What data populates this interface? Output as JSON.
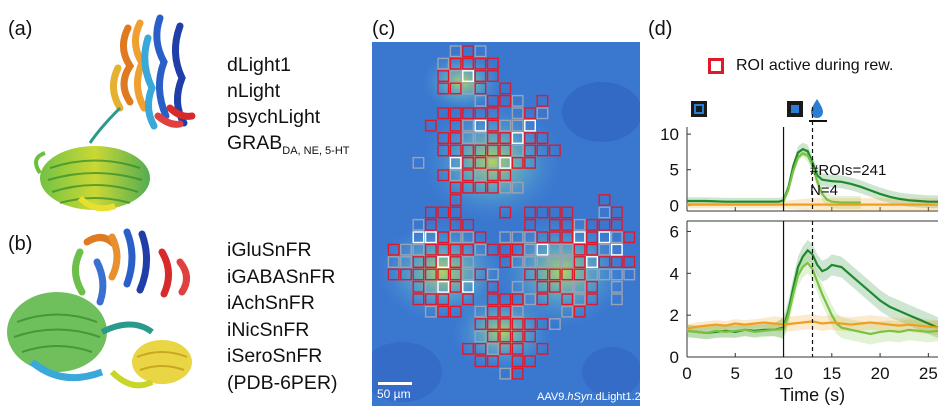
{
  "panels": {
    "a": {
      "letter": "(a)",
      "sensors": [
        "dLight1",
        "nLight",
        "psychLight"
      ],
      "grab": {
        "base": "GRAB",
        "subscript": "DA, NE, 5-HT"
      }
    },
    "b": {
      "letter": "(b)",
      "sensors": [
        "iGluSnFR",
        "iGABASnFR",
        "iAchSnFR",
        "iNicSnFR",
        "iSeroSnFR",
        "(PDB-6PER)"
      ]
    },
    "c": {
      "letter": "(c)",
      "scale_bar_label": "50 µm",
      "construct_prefix": "AAV9.",
      "construct_italic": "hSyn",
      "construct_suffix": ".dLight1.2"
    },
    "d": {
      "letter": "(d)",
      "legend_label": "ROI active during rew.",
      "annotation_rois": "#ROIs=241",
      "annotation_n": "N=4"
    }
  },
  "colors": {
    "roi_active": "#e0192a",
    "roi_other": "#9aa3b5",
    "dark_green": "#1e8a2e",
    "light_green": "#7ac242",
    "orange": "#f0a020",
    "drop_blue": "#2a7fd4"
  },
  "chart_data": [
    {
      "type": "line",
      "xlabel": "Time (s)",
      "xlim": [
        0,
        26
      ],
      "ylim": [
        -0.8,
        11
      ],
      "yticks": [
        0,
        5,
        10
      ],
      "xticks": [
        0,
        5,
        10,
        15,
        20,
        25
      ],
      "xtick_labels_shown": false,
      "markers": {
        "cue": 10,
        "reward": 13
      },
      "series": [
        {
          "color": "#1e8a2e",
          "x": [
            0,
            2,
            4,
            6,
            8,
            9.5,
            10,
            10.5,
            11,
            11.5,
            12,
            12.5,
            13,
            13.5,
            14,
            15,
            16,
            17,
            18,
            19,
            20,
            21,
            22,
            23,
            24,
            25,
            26
          ],
          "y": [
            0.6,
            0.6,
            0.5,
            0.5,
            0.5,
            0.5,
            0.7,
            2.5,
            5.5,
            7.4,
            7.9,
            7.6,
            6.0,
            4.2,
            3.6,
            3.4,
            3.3,
            3.0,
            2.6,
            2.1,
            1.6,
            1.2,
            0.9,
            0.7,
            0.6,
            0.5,
            0.5
          ]
        },
        {
          "color": "#7ac242",
          "x": [
            10,
            10.5,
            11,
            11.5,
            12,
            12.5,
            13,
            13.5,
            14,
            14.5,
            15,
            16,
            17,
            18
          ],
          "y": [
            0.6,
            2.2,
            4.8,
            6.7,
            7.3,
            7.0,
            5.6,
            3.3,
            1.6,
            0.8,
            0.5,
            0.4,
            0.4,
            0.4
          ]
        },
        {
          "color": "#f0a020",
          "x": [
            0,
            5,
            10,
            13,
            15,
            20,
            26
          ],
          "y": [
            0.1,
            0.1,
            0.1,
            0.1,
            0.1,
            0.1,
            0.1
          ]
        }
      ]
    },
    {
      "type": "line",
      "xlabel": "Time (s)",
      "xlim": [
        0,
        26
      ],
      "ylim": [
        0,
        6.5
      ],
      "yticks": [
        0,
        2,
        4,
        6
      ],
      "xticks": [
        0,
        5,
        10,
        15,
        20,
        25
      ],
      "markers": {
        "cue": 10,
        "reward": 13
      },
      "series": [
        {
          "color": "#1e8a2e",
          "x": [
            0,
            1,
            2,
            3,
            4,
            5,
            6,
            7,
            8,
            9,
            10,
            10.5,
            11,
            11.5,
            12,
            12.5,
            13,
            13.5,
            14,
            14.5,
            15,
            16,
            17,
            18,
            19,
            20,
            21,
            22,
            23,
            24,
            25,
            26
          ],
          "y": [
            1.25,
            1.2,
            1.15,
            1.2,
            1.25,
            1.2,
            1.3,
            1.25,
            1.3,
            1.3,
            1.4,
            2.2,
            3.3,
            4.3,
            4.8,
            5.1,
            4.9,
            4.4,
            4.1,
            4.2,
            4.4,
            4.3,
            3.9,
            3.5,
            3.1,
            2.7,
            2.4,
            2.2,
            2.0,
            1.8,
            1.6,
            1.4
          ]
        },
        {
          "color": "#7ac242",
          "x": [
            0,
            1,
            2,
            3,
            4,
            5,
            6,
            7,
            8,
            9,
            10,
            10.5,
            11,
            11.5,
            12,
            12.5,
            13,
            13.5,
            14,
            14.5,
            15,
            15.5,
            16,
            17,
            18,
            19,
            20,
            21,
            22,
            23,
            24,
            25,
            26
          ],
          "y": [
            1.25,
            1.2,
            1.15,
            1.25,
            1.2,
            1.25,
            1.3,
            1.2,
            1.25,
            1.3,
            1.35,
            2.0,
            3.0,
            3.9,
            4.3,
            4.5,
            4.2,
            3.6,
            3.0,
            2.5,
            2.0,
            1.6,
            1.4,
            1.3,
            1.2,
            1.1,
            1.2,
            1.25,
            1.2,
            1.3,
            1.25,
            1.2,
            1.25
          ]
        },
        {
          "color": "#f0a020",
          "x": [
            0,
            1,
            2,
            3,
            4,
            5,
            6,
            7,
            8,
            9,
            10,
            11,
            12,
            13,
            14,
            15,
            16,
            17,
            18,
            19,
            20,
            21,
            22,
            23,
            24,
            25,
            26
          ],
          "y": [
            1.35,
            1.45,
            1.5,
            1.55,
            1.5,
            1.6,
            1.55,
            1.6,
            1.65,
            1.6,
            1.55,
            1.6,
            1.65,
            1.7,
            1.6,
            1.65,
            1.6,
            1.55,
            1.6,
            1.65,
            1.6,
            1.55,
            1.5,
            1.55,
            1.5,
            1.45,
            1.4
          ]
        }
      ]
    }
  ]
}
